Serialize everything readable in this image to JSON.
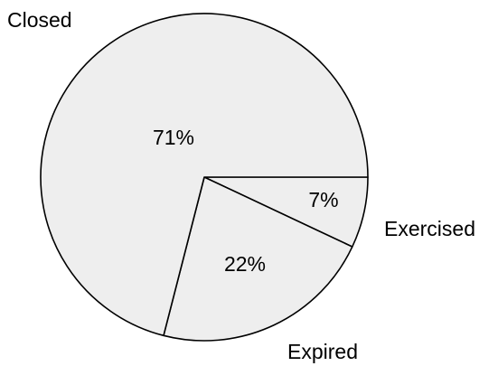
{
  "chart_data": {
    "type": "pie",
    "categories": [
      "Exercised",
      "Expired",
      "Closed"
    ],
    "values": [
      7,
      22,
      71
    ],
    "value_labels": [
      "7%",
      "22%",
      "71%"
    ],
    "unit": "%",
    "title": "",
    "legend": "none",
    "slice_fill": "#eeeeee",
    "edge_color": "#000000",
    "start": "3 o'clock",
    "direction": "clockwise"
  }
}
